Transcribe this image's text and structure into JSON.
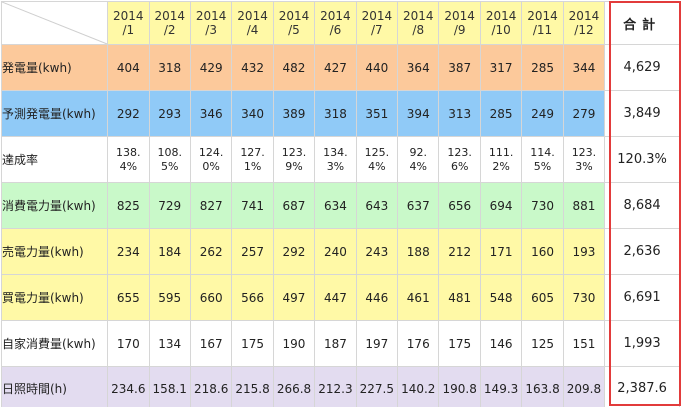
{
  "header": {
    "months": [
      [
        "2014",
        "/1"
      ],
      [
        "2014",
        "/2"
      ],
      [
        "2014",
        "/3"
      ],
      [
        "2014",
        "/4"
      ],
      [
        "2014",
        "/5"
      ],
      [
        "2014",
        "/6"
      ],
      [
        "2014",
        "/7"
      ],
      [
        "2014",
        "/8"
      ],
      [
        "2014",
        "/9"
      ],
      [
        "2014",
        "/10"
      ],
      [
        "2014",
        "/11"
      ],
      [
        "2014",
        "/12"
      ]
    ],
    "total_label": "合計"
  },
  "rows": [
    {
      "key": "gen",
      "label": "発電量(kwh)",
      "values": [
        "404",
        "318",
        "429",
        "432",
        "482",
        "427",
        "440",
        "364",
        "387",
        "317",
        "285",
        "344"
      ],
      "total": "4,629"
    },
    {
      "key": "pred",
      "label": "予測発電量(kwh)",
      "values": [
        "292",
        "293",
        "346",
        "340",
        "389",
        "318",
        "351",
        "394",
        "313",
        "285",
        "249",
        "279"
      ],
      "total": "3,849"
    },
    {
      "key": "rate",
      "label": "達成率",
      "values": [
        [
          "138.",
          "4%"
        ],
        [
          "108.",
          "5%"
        ],
        [
          "124.",
          "0%"
        ],
        [
          "127.",
          "1%"
        ],
        [
          "123.",
          "9%"
        ],
        [
          "134.",
          "3%"
        ],
        [
          "125.",
          "4%"
        ],
        [
          "92.",
          "4%"
        ],
        [
          "123.",
          "6%"
        ],
        [
          "111.",
          "2%"
        ],
        [
          "114.",
          "5%"
        ],
        [
          "123.",
          "3%"
        ]
      ],
      "total": "120.3%"
    },
    {
      "key": "cons",
      "label": "消費電力量(kwh)",
      "values": [
        "825",
        "729",
        "827",
        "741",
        "687",
        "634",
        "643",
        "637",
        "656",
        "694",
        "730",
        "881"
      ],
      "total": "8,684"
    },
    {
      "key": "sell",
      "label": "売電力量(kwh)",
      "values": [
        "234",
        "184",
        "262",
        "257",
        "292",
        "240",
        "243",
        "188",
        "212",
        "171",
        "160",
        "193"
      ],
      "total": "2,636"
    },
    {
      "key": "buy",
      "label": "買電力量(kwh)",
      "values": [
        "655",
        "595",
        "660",
        "566",
        "497",
        "447",
        "446",
        "461",
        "481",
        "548",
        "605",
        "730"
      ],
      "total": "6,691"
    },
    {
      "key": "self",
      "label": "自家消費量(kwh)",
      "values": [
        "170",
        "134",
        "167",
        "175",
        "190",
        "187",
        "197",
        "176",
        "175",
        "146",
        "125",
        "151"
      ],
      "total": "1,993"
    },
    {
      "key": "sun",
      "label": "日照時間(h)",
      "values": [
        "234.6",
        "158.1",
        "218.6",
        "215.8",
        "266.8",
        "212.3",
        "227.5",
        "140.2",
        "190.8",
        "149.3",
        "163.8",
        "209.8"
      ],
      "total": "2,387.6"
    }
  ],
  "colors": {
    "gen": "#fcc99b",
    "pred": "#90caf7",
    "cons": "#c9f9c9",
    "sell_buy_header": "#fff9a6",
    "sun": "#e3dcf0",
    "total_frame": "#e23b3b"
  }
}
